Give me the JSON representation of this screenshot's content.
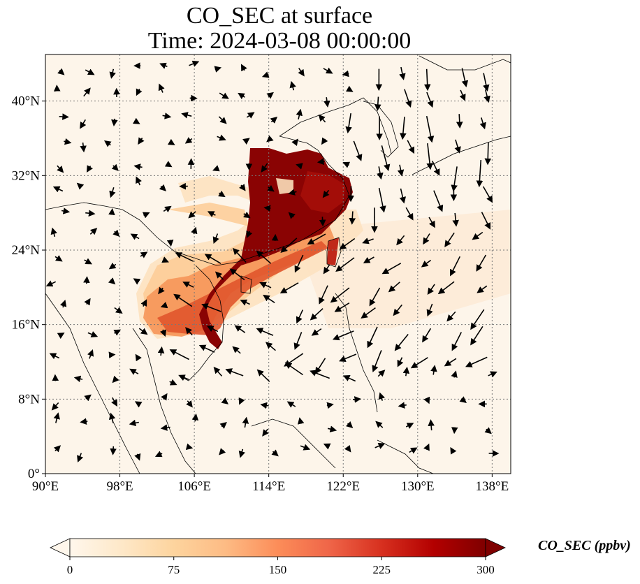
{
  "title": {
    "line1": "CO_SEC at surface",
    "line2": "Time: 2024-03-08 00:00:00"
  },
  "map": {
    "lon_range": [
      90,
      140
    ],
    "lat_range": [
      0,
      45
    ],
    "lon_ticks": [
      "90°E",
      "98°E",
      "106°E",
      "114°E",
      "122°E",
      "130°E",
      "138°E"
    ],
    "lat_ticks": [
      "0°",
      "8°N",
      "16°N",
      "24°N",
      "32°N",
      "40°N"
    ],
    "gridlines": true,
    "field_name": "CO_SEC",
    "plume_colors": [
      "#fdf3e6",
      "#fdd9a8",
      "#fc9f66",
      "#e4502a",
      "#b4140c",
      "#7f0000"
    ],
    "wind_vectors": "shown"
  },
  "colorbar": {
    "label": "CO_SEC (ppbv)",
    "ticks": [
      "0",
      "75",
      "150",
      "225",
      "300"
    ],
    "min": 0,
    "max": 300,
    "extend": "both",
    "colormap": "OrRd",
    "colors": [
      "#fff7ec",
      "#fee8c8",
      "#fdd49e",
      "#fdbb84",
      "#fc8d59",
      "#ef6548",
      "#d7301f",
      "#b30000",
      "#7f0000"
    ]
  }
}
